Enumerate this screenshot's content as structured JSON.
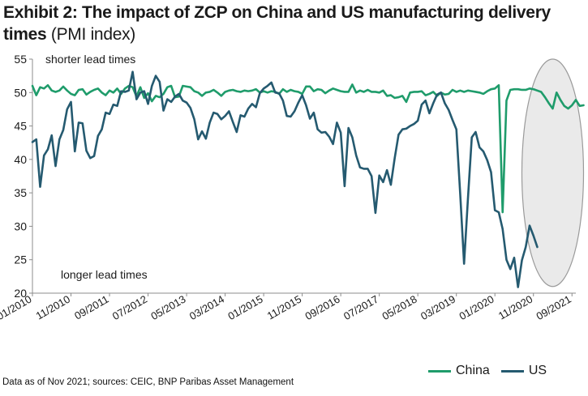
{
  "title": {
    "bold": "Exhibit 2: The impact of ZCP on China and US manufacturing delivery times",
    "normal": "(PMI index)"
  },
  "footnote": "Data as of Nov 2021; sources: CEIC, BNP Paribas Asset Management",
  "colors": {
    "China": "#1f9c6b",
    "US": "#255a70",
    "ellipse_fill": "#e6e6e6",
    "ellipse_stroke": "#9a9a9a"
  },
  "chart_data": {
    "type": "line",
    "title": "Exhibit 2: The impact of ZCP on China and US manufacturing delivery times (PMI index)",
    "x_range": [
      "2010-01",
      "2021-10"
    ],
    "ylim": [
      20,
      55
    ],
    "yticks": [
      20,
      25,
      30,
      35,
      40,
      45,
      50,
      55
    ],
    "xticks": [
      "01/2010",
      "11/2010",
      "09/2011",
      "07/2012",
      "05/2013",
      "03/2014",
      "01/2015",
      "11/2015",
      "09/2016",
      "07/2017",
      "05/2018",
      "03/2019",
      "01/2020",
      "11/2020",
      "09/2021"
    ],
    "annotations": [
      "shorter lead times",
      "longer lead times"
    ],
    "highlight": "ellipse around Nov 2020 - Oct 2021",
    "legend": "bottom-right",
    "series": [
      {
        "name": "China",
        "start": "2010-01",
        "values": [
          51.0,
          49.6,
          50.8,
          50.6,
          51.1,
          50.3,
          50.1,
          50.3,
          50.9,
          50.3,
          49.8,
          49.6,
          50.4,
          50.5,
          49.7,
          50.1,
          50.4,
          50.6,
          50.0,
          49.6,
          50.3,
          50.0,
          50.6,
          49.8,
          50.6,
          51.0,
          50.8,
          49.4,
          50.8,
          49.2,
          49.9,
          48.7,
          49.5,
          49.3,
          49.8,
          50.8,
          51.0,
          49.3,
          49.4,
          51.0,
          50.9,
          50.8,
          50.2,
          50.0,
          49.5,
          50.0,
          50.1,
          50.4,
          50.0,
          49.5,
          50.1,
          50.3,
          50.4,
          50.2,
          50.1,
          50.3,
          50.2,
          50.3,
          50.5,
          50.0,
          50.2,
          50.0,
          50.2,
          50.1,
          49.8,
          50.5,
          50.1,
          50.4,
          50.2,
          50.1,
          49.8,
          50.9,
          50.9,
          50.2,
          50.5,
          50.4,
          49.9,
          50.3,
          50.6,
          50.4,
          50.2,
          50.1,
          50.1,
          51.2,
          50.0,
          50.3,
          50.1,
          50.4,
          50.1,
          50.1,
          50.0,
          50.3,
          49.5,
          49.6,
          49.2,
          49.3,
          49.5,
          48.6,
          50.0,
          50.1,
          50.1,
          50.2,
          49.6,
          49.8,
          50.1,
          49.5,
          50.0,
          49.7,
          49.8,
          50.4,
          50.1,
          50.3,
          50.1,
          50.3,
          50.2,
          50.1,
          50.0,
          49.8,
          50.2,
          50.5,
          50.6,
          51.1,
          32.1,
          48.8,
          50.4,
          50.5,
          50.5,
          50.4,
          50.4,
          50.6,
          50.5,
          50.3,
          50.1,
          49.3,
          48.4,
          47.6,
          50.0,
          48.9,
          48.0,
          47.6,
          48.1,
          48.9,
          48.0,
          48.1
        ]
      },
      {
        "name": "US",
        "start": "2010-01",
        "values": [
          42.6,
          43.0,
          35.9,
          40.6,
          41.5,
          43.6,
          39.0,
          43.0,
          44.4,
          47.5,
          48.6,
          41.2,
          45.5,
          45.4,
          41.3,
          40.2,
          40.5,
          43.5,
          44.5,
          47.0,
          46.8,
          48.2,
          48.0,
          50.2,
          50.1,
          50.3,
          53.1,
          49.0,
          50.0,
          50.2,
          48.3,
          51.0,
          52.5,
          51.6,
          47.3,
          49.0,
          48.6,
          49.4,
          49.8,
          48.8,
          48.5,
          47.7,
          46.0,
          43.0,
          44.2,
          43.1,
          45.5,
          47.0,
          46.8,
          46.0,
          46.5,
          47.2,
          45.6,
          44.1,
          46.6,
          46.4,
          47.6,
          48.3,
          47.8,
          49.9,
          50.6,
          51.0,
          51.5,
          50.0,
          49.9,
          48.8,
          46.5,
          46.4,
          47.2,
          48.5,
          49.6,
          48.1,
          46.1,
          47.0,
          44.5,
          44.0,
          44.1,
          43.4,
          42.3,
          45.5,
          44.0,
          36.0,
          44.7,
          43.3,
          40.6,
          38.8,
          38.6,
          38.6,
          37.5,
          32.0,
          37.6,
          36.6,
          38.4,
          36.2,
          40.2,
          43.7,
          44.5,
          44.6,
          45.0,
          45.3,
          45.8,
          48.2,
          48.8,
          46.9,
          48.4,
          49.7,
          50.0,
          48.4,
          47.4,
          45.9,
          44.5,
          34.8,
          24.4,
          34.1,
          43.3,
          44.1,
          41.8,
          41.2,
          39.9,
          38.1,
          32.4,
          32.1,
          29.6,
          25.0,
          23.6,
          25.3,
          20.9,
          24.9,
          26.9,
          30.1,
          28.6,
          26.9
        ]
      }
    ]
  }
}
